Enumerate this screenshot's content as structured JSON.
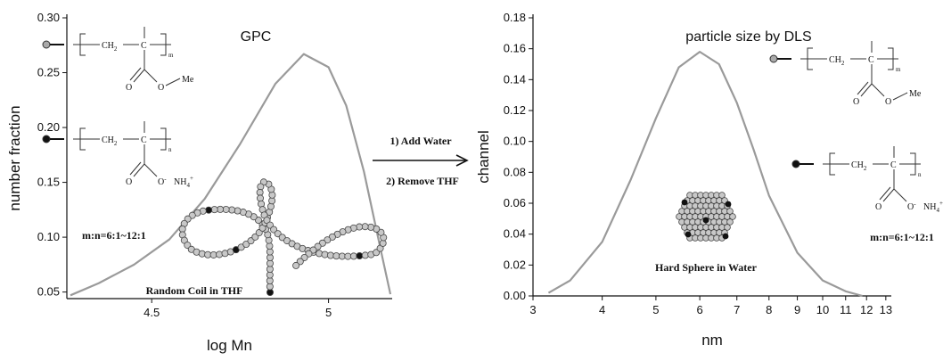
{
  "chart_data": [
    {
      "type": "line",
      "title": "GPC",
      "x_label": "log Mn",
      "y_label": "number fraction",
      "x": [
        4.27,
        4.35,
        4.45,
        4.55,
        4.65,
        4.75,
        4.85,
        4.93,
        5.0,
        5.05,
        5.1,
        5.15,
        5.175
      ],
      "values": [
        0.047,
        0.058,
        0.075,
        0.098,
        0.135,
        0.185,
        0.24,
        0.267,
        0.255,
        0.22,
        0.16,
        0.085,
        0.048
      ],
      "color": "#9a9a9a",
      "xlim": [
        4.26,
        5.18
      ],
      "xticks": [
        4.5,
        5
      ],
      "ylim": [
        0.044,
        0.3
      ],
      "yticks": [
        {
          "value": 0.05,
          "label": "0.05"
        },
        {
          "value": 0.1,
          "label": "0.10"
        },
        {
          "value": 0.15,
          "label": "0.15"
        },
        {
          "value": 0.2,
          "label": "0.20"
        },
        {
          "value": 0.25,
          "label": "0.25"
        },
        {
          "value": 0.3,
          "label": "0.30"
        }
      ],
      "annotations": {
        "ratio": "m:n=6:1~12:1",
        "morphology": "Random Coil in THF"
      },
      "structures": [
        {
          "group": "CH",
          "group_sub": "2",
          "center": "C",
          "carbonyl": "O",
          "ester": "O",
          "end": "Me",
          "repeat": "m"
        },
        {
          "group": "CH",
          "group_sub": "2",
          "center": "C",
          "carbonyl": "O",
          "ester": "O",
          "ester_sup": "-",
          "end": "NH",
          "end_sub": "4",
          "end_sup": "+",
          "repeat": "n"
        }
      ]
    },
    {
      "type": "line",
      "title": "particle size by DLS",
      "x_label": "nm",
      "y_label": "channel",
      "x_scale": "log",
      "x": [
        3.2,
        3.5,
        4,
        4.5,
        5,
        5.5,
        6,
        6.5,
        7,
        7.5,
        8,
        9,
        10,
        11,
        11.8
      ],
      "values": [
        0.002,
        0.01,
        0.035,
        0.075,
        0.115,
        0.148,
        0.158,
        0.15,
        0.125,
        0.095,
        0.065,
        0.028,
        0.01,
        0.003,
        0.0
      ],
      "color": "#9a9a9a",
      "xlim": [
        3,
        13.3
      ],
      "xticks": [
        3,
        4,
        5,
        6,
        7,
        8,
        9,
        10,
        11,
        12,
        13
      ],
      "ylim": [
        0,
        0.18
      ],
      "yticks": [
        {
          "value": 0,
          "label": "0.00"
        },
        {
          "value": 0.02,
          "label": "0.02"
        },
        {
          "value": 0.04,
          "label": "0.04"
        },
        {
          "value": 0.06,
          "label": "0.06"
        },
        {
          "value": 0.08,
          "label": "0.08"
        },
        {
          "value": 0.1,
          "label": "0.10"
        },
        {
          "value": 0.12,
          "label": "0.12"
        },
        {
          "value": 0.14,
          "label": "0.14"
        },
        {
          "value": 0.16,
          "label": "0.16"
        },
        {
          "value": 0.18,
          "label": "0.18"
        }
      ],
      "annotations": {
        "ratio": "m:n=6:1~12:1",
        "morphology": "Hard Sphere in Water"
      },
      "structures": [
        {
          "group": "CH",
          "group_sub": "2",
          "center": "C",
          "carbonyl": "O",
          "ester": "O",
          "end": "Me",
          "repeat": "m"
        },
        {
          "group": "CH",
          "group_sub": "2",
          "center": "C",
          "carbonyl": "O",
          "ester": "O",
          "ester_sup": "-",
          "end": "NH",
          "end_sub": "4",
          "end_sup": "+",
          "repeat": "n"
        }
      ]
    }
  ],
  "process_steps": [
    "1) Add Water",
    "2) Remove THF"
  ]
}
